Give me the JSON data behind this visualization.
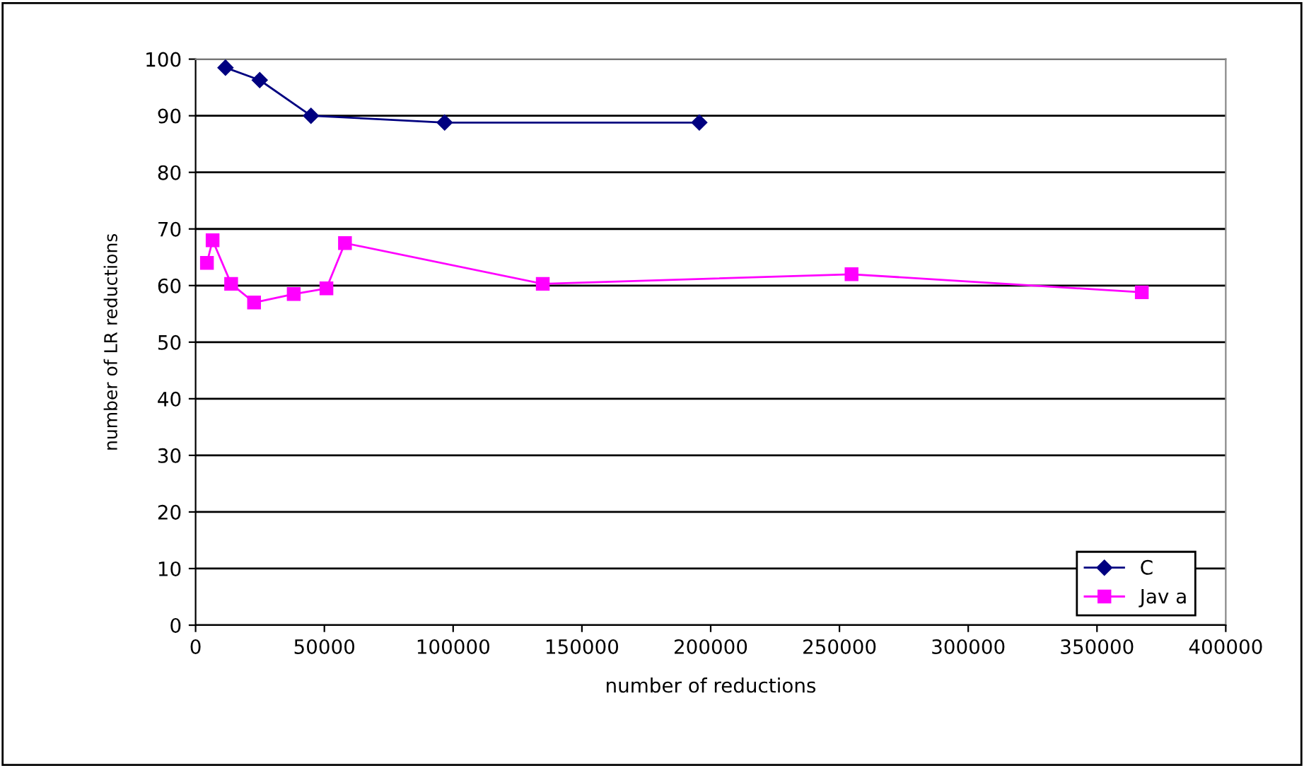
{
  "chart_data": {
    "type": "line",
    "xlabel": "number of reductions",
    "ylabel": "number of LR reductions",
    "xlim": [
      0,
      400000
    ],
    "xticks": [
      0,
      50000,
      100000,
      150000,
      200000,
      250000,
      300000,
      350000,
      400000
    ],
    "ylim": [
      0,
      100
    ],
    "yticks": [
      0,
      10,
      20,
      30,
      40,
      50,
      60,
      70,
      80,
      90,
      100
    ],
    "grid": "y",
    "legend": "bottom right",
    "series": [
      {
        "name": "C",
        "color": "#000080",
        "marker": "diamond",
        "x": [
          11600,
          24900,
          44800,
          96700,
          195600
        ],
        "values": [
          98.5,
          96.3,
          90,
          88.8,
          88.8
        ]
      },
      {
        "name": "Jav a",
        "color": "#ff00ff",
        "marker": "square",
        "x": [
          4400,
          6600,
          13800,
          22700,
          38100,
          50800,
          58000,
          134800,
          254700,
          367400
        ],
        "values": [
          64,
          68,
          60.3,
          57,
          58.5,
          59.5,
          67.5,
          60.3,
          62,
          58.8
        ]
      }
    ]
  }
}
